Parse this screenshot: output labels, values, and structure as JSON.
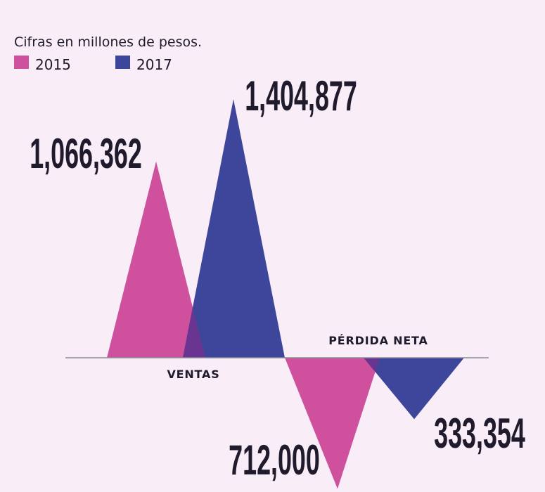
{
  "chart_data": {
    "type": "area",
    "subtitle": "Cifras en millones de pesos.",
    "categories": [
      "VENTAS",
      "PÉRDIDA NETA"
    ],
    "series": [
      {
        "name": "2015",
        "color": "#cf509d",
        "values": [
          1066362,
          -712000
        ],
        "labels": [
          "1,066,362",
          "712,000"
        ]
      },
      {
        "name": "2017",
        "color": "#3d469a",
        "values": [
          1404877,
          -333354
        ],
        "labels": [
          "1,404,877",
          "333,354"
        ]
      }
    ],
    "overlap_color": "#6a3590",
    "axis_color": "#8a8c99"
  }
}
